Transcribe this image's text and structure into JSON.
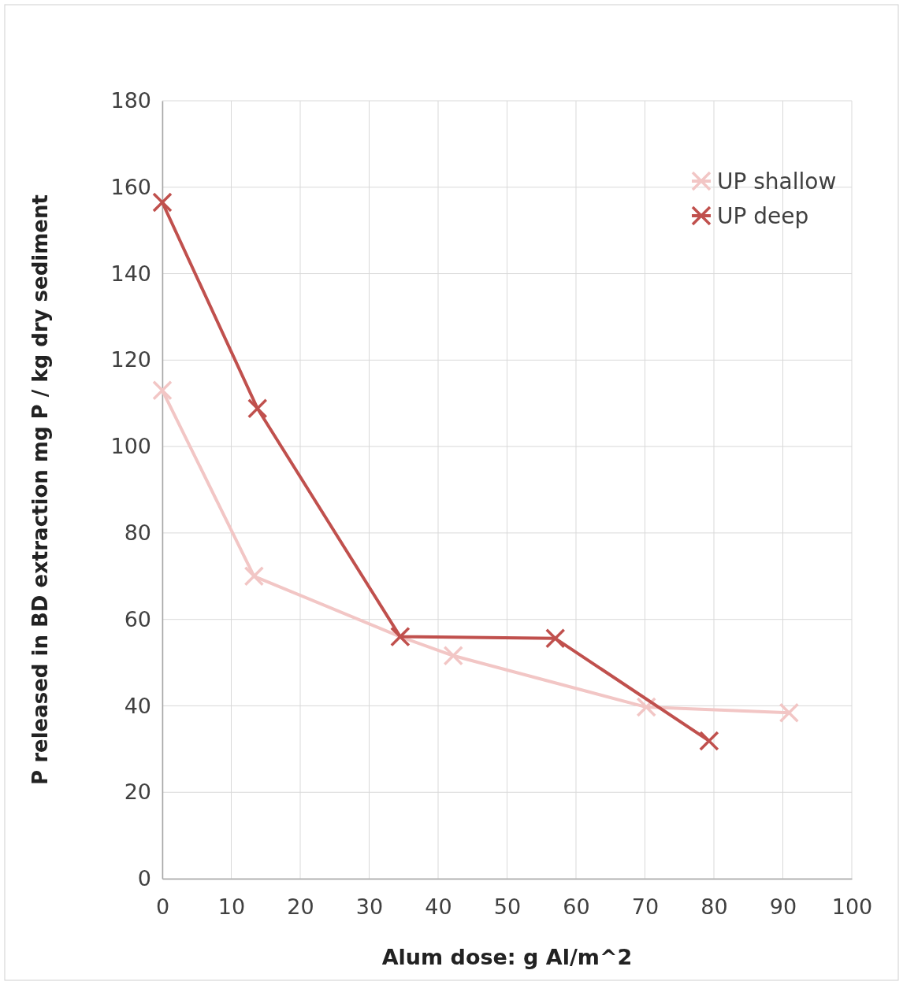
{
  "chart_data": {
    "type": "line",
    "xlabel": "Alum dose: g Al/m^2",
    "ylabel": "P released  in BD extraction mg P / kg dry sediment",
    "xlim": [
      0,
      100
    ],
    "xticks": [
      0,
      10,
      20,
      30,
      40,
      50,
      60,
      70,
      80,
      90,
      100
    ],
    "ylim": [
      0,
      180
    ],
    "yticks": [
      0,
      20,
      40,
      60,
      80,
      100,
      120,
      140,
      160,
      180
    ],
    "grid": true,
    "legend": "top right",
    "line_style": "solid",
    "series": [
      {
        "name": "UP shallow",
        "color": "#f2c6c5",
        "marker": "cross",
        "x": [
          0,
          13.3,
          34.5,
          42.2,
          70.2,
          90.9
        ],
        "values": [
          113,
          70,
          56,
          51.6,
          39.7,
          38.4
        ]
      },
      {
        "name": "UP deep",
        "color": "#c0504d",
        "marker": "cross",
        "x": [
          0,
          13.8,
          34.5,
          57,
          79.3
        ],
        "values": [
          156.5,
          108.8,
          56,
          55.6,
          31.9
        ]
      }
    ]
  }
}
